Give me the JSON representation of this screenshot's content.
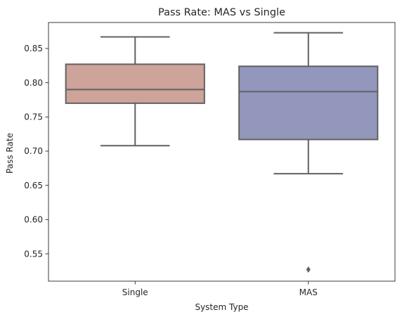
{
  "chart_data": {
    "type": "box",
    "title": "Pass Rate: MAS vs Single",
    "xlabel": "System Type",
    "ylabel": "Pass Rate",
    "ylim": [
      0.51,
      0.888
    ],
    "yticks": [
      0.55,
      0.6,
      0.65,
      0.7,
      0.75,
      0.8,
      0.85
    ],
    "ytick_labels": [
      "0.55",
      "0.60",
      "0.65",
      "0.70",
      "0.75",
      "0.80",
      "0.85"
    ],
    "categories": [
      "Single",
      "MAS"
    ],
    "grid": false,
    "series": [
      {
        "category": "Single",
        "whisker_low": 0.708,
        "q1": 0.77,
        "median": 0.79,
        "q3": 0.827,
        "whisker_high": 0.867,
        "outliers": [],
        "color": "#cda39a"
      },
      {
        "category": "MAS",
        "whisker_low": 0.667,
        "q1": 0.717,
        "median": 0.787,
        "q3": 0.824,
        "whisker_high": 0.873,
        "outliers": [
          0.527
        ],
        "color": "#9397bc"
      }
    ]
  }
}
